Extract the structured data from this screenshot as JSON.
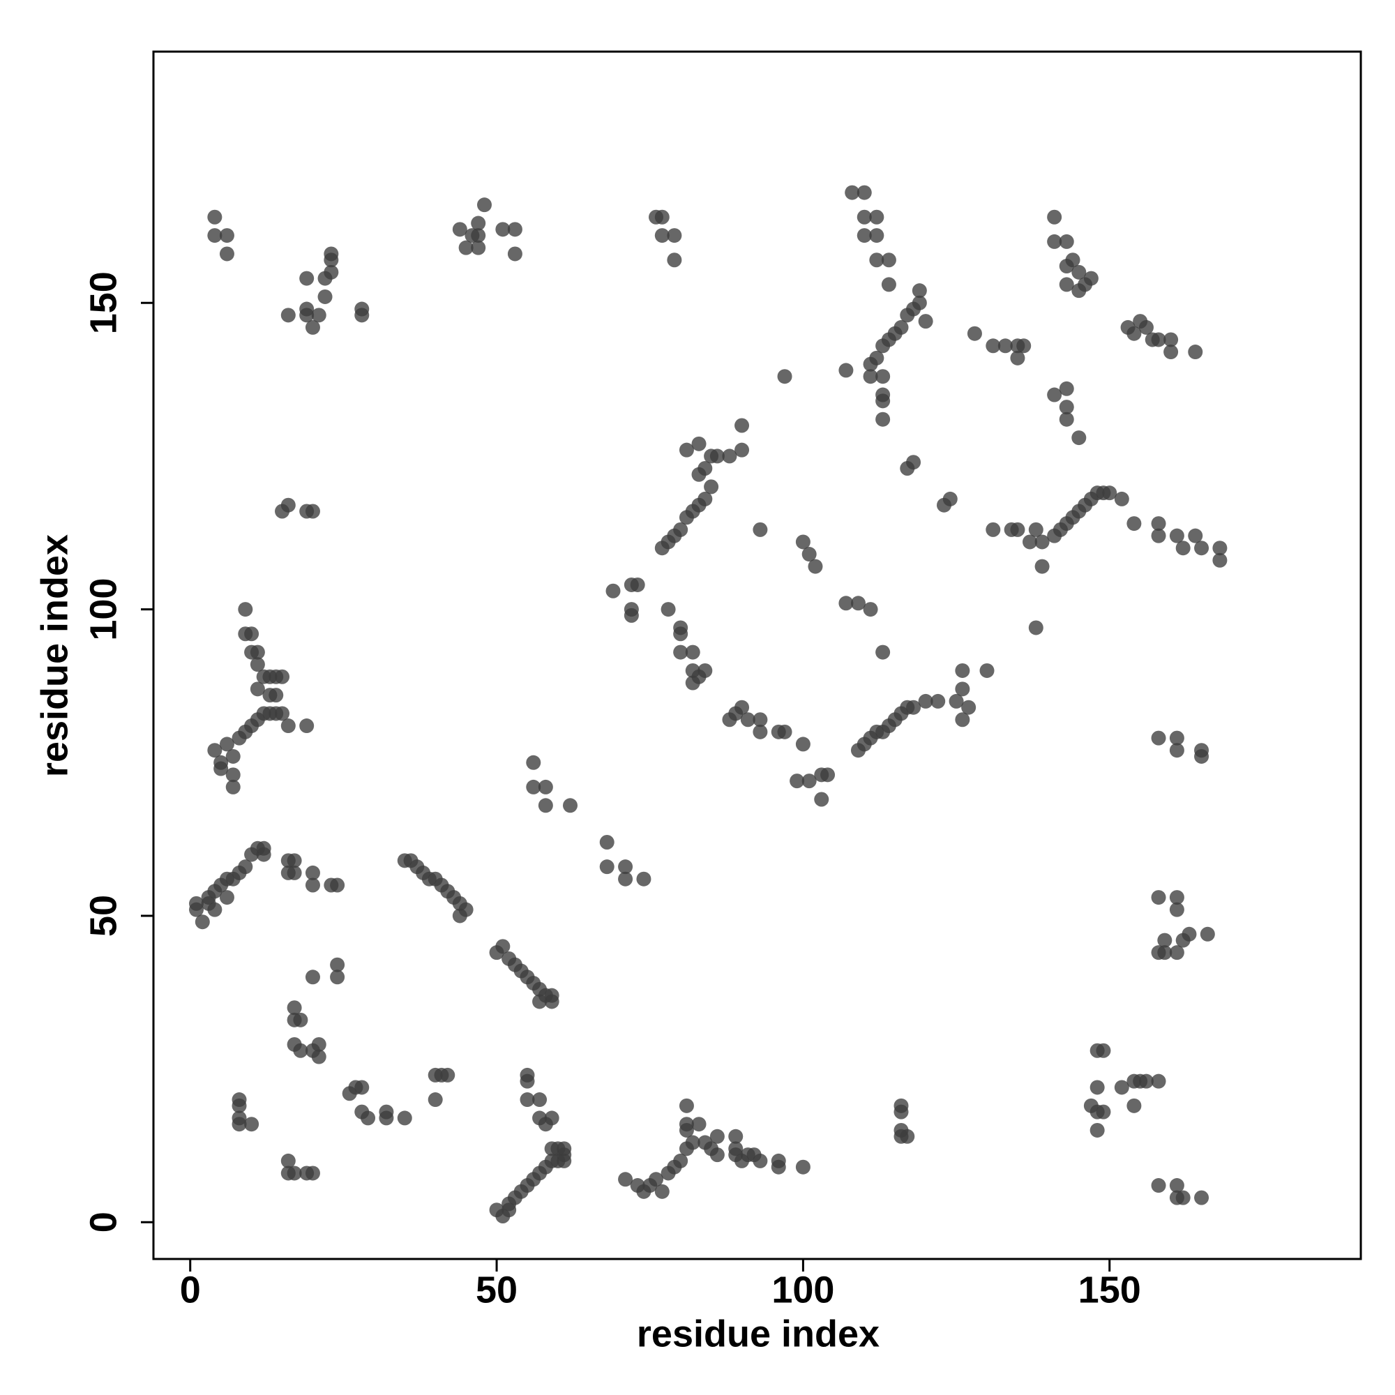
{
  "chart_data": {
    "type": "scatter",
    "xlabel": "residue index",
    "ylabel": "residue index",
    "xlim": [
      -6,
      191
    ],
    "ylim": [
      -6,
      191
    ],
    "xticks": [
      0,
      50,
      100,
      150
    ],
    "yticks": [
      0,
      50,
      100,
      150
    ],
    "color": "#3c3c3c",
    "opacity": 0.78,
    "x": [
      4,
      4,
      6,
      6,
      16,
      19,
      19,
      20,
      21,
      22,
      22,
      23,
      23,
      23,
      28,
      28,
      19,
      46,
      47,
      48,
      47,
      45,
      47,
      51,
      53,
      53,
      44,
      76,
      77,
      77,
      79,
      79,
      108,
      110,
      110,
      110,
      112,
      112,
      112,
      114,
      114,
      141,
      141,
      143,
      143,
      144,
      145,
      146,
      147,
      143,
      145,
      111,
      112,
      113,
      114,
      115,
      116,
      117,
      118,
      119,
      119,
      120,
      111,
      113,
      113,
      113,
      113,
      107,
      128,
      131,
      133,
      135,
      135,
      136,
      153,
      154,
      155,
      156,
      157,
      158,
      160,
      160,
      164,
      141,
      143,
      143,
      143,
      145,
      97,
      77,
      78,
      79,
      80,
      81,
      82,
      83,
      84,
      85,
      83,
      84,
      85,
      86,
      88,
      83,
      81,
      90,
      90,
      93,
      100,
      101,
      102,
      117,
      118,
      123,
      124,
      137,
      139,
      141,
      142,
      143,
      144,
      145,
      146,
      147,
      148,
      149,
      150,
      152,
      131,
      134,
      135,
      138,
      139,
      154,
      158,
      158,
      161,
      162,
      164,
      165,
      168,
      168,
      138,
      15,
      16,
      19,
      20,
      69,
      72,
      73,
      72,
      72,
      78,
      107,
      109,
      111,
      113,
      80,
      80,
      80,
      82,
      82,
      83,
      84,
      82,
      88,
      89,
      90,
      91,
      93,
      93,
      96,
      97,
      100,
      99,
      101,
      103,
      104,
      103,
      109,
      110,
      111,
      112,
      113,
      114,
      115,
      116,
      117,
      118,
      120,
      122,
      125,
      126,
      127,
      126,
      126,
      130,
      158,
      161,
      161,
      165,
      165,
      4,
      5,
      5,
      6,
      7,
      7,
      7,
      8,
      9,
      10,
      11,
      12,
      13,
      14,
      15,
      16,
      19,
      9,
      9,
      10,
      10,
      11,
      11,
      12,
      13,
      14,
      15,
      11,
      13,
      14,
      56,
      56,
      58,
      58,
      62,
      68,
      68,
      71,
      71,
      74,
      1,
      1,
      2,
      3,
      3,
      4,
      4,
      5,
      6,
      6,
      7,
      8,
      9,
      10,
      11,
      12,
      12,
      16,
      17,
      16,
      17,
      20,
      20,
      23,
      24,
      35,
      36,
      37,
      38,
      39,
      40,
      41,
      42,
      43,
      44,
      45,
      44,
      50,
      51,
      52,
      53,
      54,
      55,
      56,
      57,
      58,
      59,
      57,
      59,
      24,
      24,
      20,
      17,
      17,
      18,
      17,
      18,
      20,
      21,
      21,
      26,
      27,
      28,
      28,
      29,
      32,
      32,
      35,
      8,
      8,
      8,
      8,
      10,
      40,
      41,
      42,
      40,
      55,
      55,
      55,
      57,
      57,
      58,
      59,
      59,
      60,
      61,
      61,
      60,
      61,
      50,
      51,
      52,
      52,
      53,
      54,
      55,
      56,
      57,
      58,
      59,
      16,
      16,
      17,
      19,
      20,
      71,
      73,
      74,
      75,
      76,
      77,
      78,
      79,
      80,
      81,
      82,
      81,
      81,
      81,
      83,
      84,
      85,
      86,
      86,
      89,
      89,
      89,
      90,
      91,
      92,
      93,
      96,
      96,
      100,
      116,
      116,
      116,
      117,
      116,
      148,
      149,
      148,
      147,
      148,
      149,
      152,
      154,
      155,
      156,
      158,
      154,
      148,
      158,
      158,
      159,
      159,
      161,
      161,
      161,
      162,
      163,
      166,
      158,
      161,
      161,
      162,
      165
    ],
    "values": [
      164,
      161,
      161,
      158,
      148,
      149,
      148,
      146,
      148,
      151,
      154,
      155,
      157,
      158,
      149,
      148,
      154,
      161,
      161,
      166,
      163,
      159,
      159,
      162,
      162,
      158,
      162,
      164,
      164,
      161,
      161,
      157,
      168,
      168,
      164,
      161,
      161,
      164,
      157,
      157,
      153,
      164,
      160,
      160,
      156,
      157,
      155,
      153,
      154,
      153,
      152,
      140,
      141,
      143,
      144,
      145,
      146,
      148,
      149,
      150,
      152,
      147,
      138,
      138,
      135,
      134,
      131,
      139,
      145,
      143,
      143,
      143,
      141,
      143,
      146,
      145,
      147,
      146,
      144,
      144,
      144,
      142,
      142,
      135,
      136,
      133,
      131,
      128,
      138,
      110,
      111,
      112,
      113,
      115,
      116,
      117,
      118,
      120,
      122,
      123,
      125,
      125,
      125,
      127,
      126,
      126,
      130,
      113,
      111,
      109,
      107,
      123,
      124,
      117,
      118,
      111,
      111,
      112,
      113,
      114,
      115,
      116,
      117,
      118,
      119,
      119,
      119,
      118,
      113,
      113,
      113,
      113,
      107,
      114,
      114,
      112,
      112,
      110,
      112,
      110,
      110,
      108,
      97,
      116,
      117,
      116,
      116,
      103,
      104,
      104,
      100,
      99,
      100,
      101,
      101,
      100,
      93,
      97,
      96,
      93,
      93,
      90,
      89,
      90,
      88,
      82,
      83,
      84,
      82,
      82,
      80,
      80,
      80,
      78,
      72,
      72,
      73,
      73,
      69,
      77,
      78,
      79,
      80,
      80,
      81,
      82,
      83,
      84,
      84,
      85,
      85,
      85,
      87,
      84,
      82,
      90,
      90,
      79,
      79,
      77,
      77,
      76,
      77,
      75,
      74,
      78,
      76,
      73,
      71,
      79,
      80,
      81,
      82,
      83,
      83,
      83,
      83,
      81,
      81,
      100,
      96,
      96,
      93,
      93,
      91,
      89,
      89,
      89,
      89,
      87,
      86,
      86,
      75,
      71,
      71,
      68,
      68,
      62,
      58,
      58,
      56,
      56,
      51,
      52,
      49,
      52,
      53,
      54,
      51,
      55,
      53,
      56,
      56,
      57,
      58,
      60,
      61,
      61,
      60,
      59,
      59,
      57,
      57,
      57,
      55,
      55,
      55,
      59,
      59,
      58,
      57,
      56,
      56,
      55,
      54,
      53,
      52,
      51,
      50,
      44,
      45,
      43,
      42,
      41,
      40,
      39,
      38,
      37,
      36,
      36,
      37,
      42,
      40,
      40,
      33,
      35,
      33,
      29,
      28,
      28,
      29,
      27,
      21,
      22,
      22,
      18,
      17,
      18,
      17,
      17,
      20,
      19,
      17,
      16,
      16,
      24,
      24,
      24,
      20,
      24,
      23,
      20,
      20,
      17,
      16,
      17,
      12,
      12,
      12,
      11,
      10,
      10,
      2,
      1,
      2,
      3,
      4,
      5,
      6,
      7,
      8,
      9,
      10,
      10,
      8,
      8,
      8,
      8,
      7,
      6,
      5,
      6,
      7,
      5,
      8,
      9,
      10,
      12,
      13,
      15,
      16,
      19,
      16,
      13,
      12,
      14,
      11,
      14,
      12,
      11,
      10,
      11,
      11,
      10,
      10,
      9,
      9,
      19,
      18,
      15,
      14,
      14,
      28,
      28,
      22,
      19,
      18,
      18,
      22,
      23,
      23,
      23,
      23,
      19,
      15,
      53,
      44,
      46,
      44,
      53,
      51,
      44,
      46,
      47,
      47,
      6,
      6,
      4,
      4,
      4
    ]
  }
}
